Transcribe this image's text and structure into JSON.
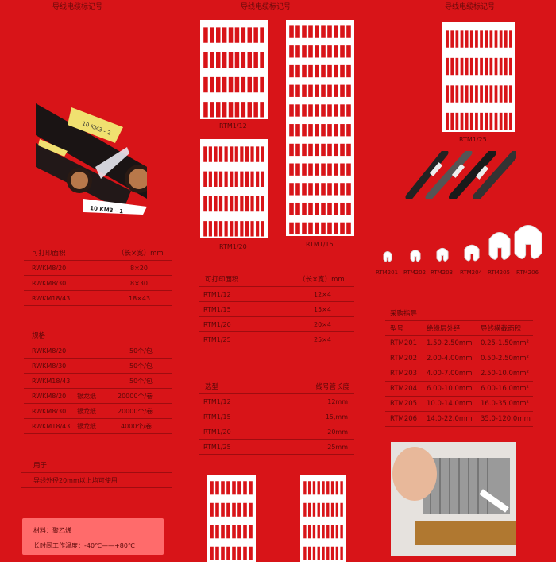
{
  "titles": [
    "导线电缆标记号",
    "导线电缆标记号",
    "导线电缆标记号"
  ],
  "left": {
    "photo_labels": [
      "10 KM3 - 2",
      "10 KM3 - 1"
    ],
    "print_area": {
      "header": [
        "可打印面积",
        "（长×宽）mm"
      ],
      "rows": [
        [
          "RWKM8/20",
          "8×20"
        ],
        [
          "RWKM8/30",
          "8×30"
        ],
        [
          "RWKM18/43",
          "18×43"
        ]
      ]
    },
    "spec": {
      "header": "规格",
      "rows": [
        [
          "RWKM8/20",
          "",
          "50个/包"
        ],
        [
          "RWKM8/30",
          "",
          "50个/包"
        ],
        [
          "RWKM18/43",
          "",
          "50个/包"
        ],
        [
          "RWKM8/20",
          "银龙纸",
          "20000个/卷"
        ],
        [
          "RWKM8/30",
          "银龙纸",
          "20000个/卷"
        ],
        [
          "RWKM18/43",
          "银龙纸",
          "4000个/卷"
        ]
      ]
    },
    "usage": {
      "header": "用于",
      "text": "导线外径20mm以上均可使用"
    },
    "material": {
      "line1": "材料：聚乙烯",
      "line2": "长时间工作温度：-40℃——+80℃"
    }
  },
  "middle": {
    "card_labels": [
      "RTM1/12",
      "RTM1/20",
      "RTM1/15"
    ],
    "print_area": {
      "header": [
        "可打印面积",
        "（长×宽）mm"
      ],
      "rows": [
        [
          "RTM1/12",
          "12×4"
        ],
        [
          "RTM1/15",
          "15×4"
        ],
        [
          "RTM1/20",
          "20×4"
        ],
        [
          "RTM1/25",
          "25×4"
        ]
      ]
    },
    "selection": {
      "header": [
        "选型",
        "线号管长度"
      ],
      "rows": [
        [
          "RTM1/12",
          "12mm"
        ],
        [
          "RTM1/15",
          "15,mm"
        ],
        [
          "RTM1/20",
          "20mm"
        ],
        [
          "RTM1/25",
          "25mm"
        ]
      ]
    }
  },
  "right": {
    "card_label": "RTM1/25",
    "clips": [
      "RTM201",
      "RTM202",
      "RTM203",
      "RTM204",
      "RTM205",
      "RTM206"
    ],
    "guide": {
      "title": "采购指导",
      "header": [
        "型号",
        "绝缘层外经",
        "导线横截面积"
      ],
      "rows": [
        [
          "RTM201",
          "1.50-2.50mm",
          "0.25-1.50mm²"
        ],
        [
          "RTM202",
          "2.00-4.00mm",
          "0.50-2.50mm²"
        ],
        [
          "RTM203",
          "4.00-7.00mm",
          "2.50-10.0mm²"
        ],
        [
          "RTM204",
          "6.00-10.0mm",
          "6.00-16.0mm²"
        ],
        [
          "RTM205",
          "10.0-14.0mm",
          "16.0-35.0mm²"
        ],
        [
          "RTM206",
          "14.0-22.0mm",
          "35.0-120.0mm"
        ]
      ]
    }
  },
  "colors": {
    "background": "#d81418",
    "text": "#5a0808",
    "box": "#ff6b6b"
  }
}
